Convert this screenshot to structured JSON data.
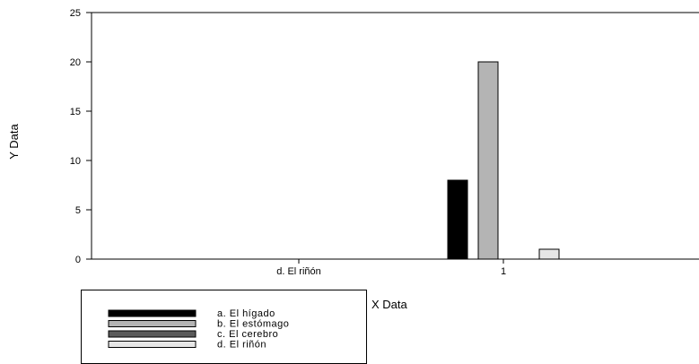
{
  "chart_data": {
    "type": "bar",
    "title": "",
    "xlabel": "X Data",
    "ylabel": "Y Data",
    "ylim": [
      0,
      25
    ],
    "yticks": [
      0,
      5,
      10,
      15,
      20,
      25
    ],
    "categories": [
      "d. El riñón",
      "1"
    ],
    "series": [
      {
        "name": "a. El hígado",
        "color": "#000000",
        "values": [
          null,
          8
        ]
      },
      {
        "name": "b. El estómago",
        "color": "#b4b4b4",
        "values": [
          null,
          20
        ]
      },
      {
        "name": "c. El cerebro",
        "color": "#5a5a5a",
        "values": [
          null,
          null
        ]
      },
      {
        "name": "d. El riñón",
        "color": "#e6e6e6",
        "values": [
          null,
          1
        ]
      }
    ],
    "grid": false,
    "legend_position": "bottom-left"
  }
}
